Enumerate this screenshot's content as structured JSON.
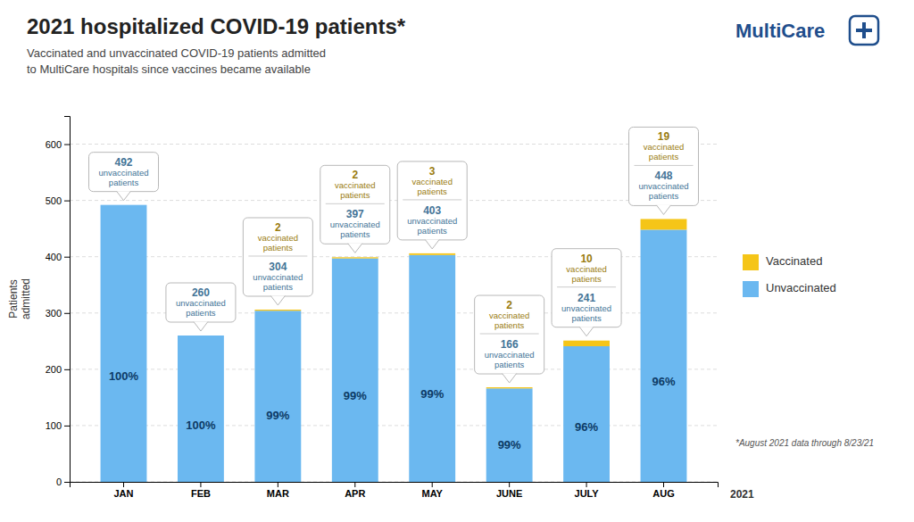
{
  "chart_data": {
    "type": "bar",
    "stacked": true,
    "title": "2021 hospitalized COVID-19 patients*",
    "subtitle": "Vaccinated and unvaccinated COVID-19 patients admitted\nto MultiCare hospitals since vaccines became available",
    "logo": "MultiCare",
    "categories": [
      "JAN",
      "FEB",
      "MAR",
      "APR",
      "MAY",
      "JUNE",
      "JULY",
      "AUG"
    ],
    "xlabel": "2021",
    "ylabel": "Patients\nadmitted",
    "series": [
      {
        "name": "Unvaccinated",
        "color": "#6bb8f0",
        "values": [
          492,
          260,
          304,
          397,
          403,
          166,
          241,
          448
        ],
        "data_label_caption": [
          "unvaccinated",
          "patients"
        ]
      },
      {
        "name": "Vaccinated",
        "color": "#f5c518",
        "values": [
          0,
          0,
          2,
          2,
          3,
          2,
          10,
          19
        ],
        "value_labels": [
          null,
          null,
          "2",
          "2",
          "3",
          "2",
          "10",
          "19"
        ],
        "data_label_caption": [
          "vaccinated",
          "patients"
        ]
      }
    ],
    "share_labels": [
      "100%",
      "100%",
      "99%",
      "99%",
      "99%",
      "99%",
      "96%",
      "96%"
    ],
    "data_labels": true,
    "ylim": [
      0,
      650
    ],
    "yticks": [
      0,
      100,
      200,
      300,
      400,
      500,
      600
    ],
    "grid": true,
    "legend": "right",
    "footnote": "*August 2021 data through 8/23/21"
  }
}
